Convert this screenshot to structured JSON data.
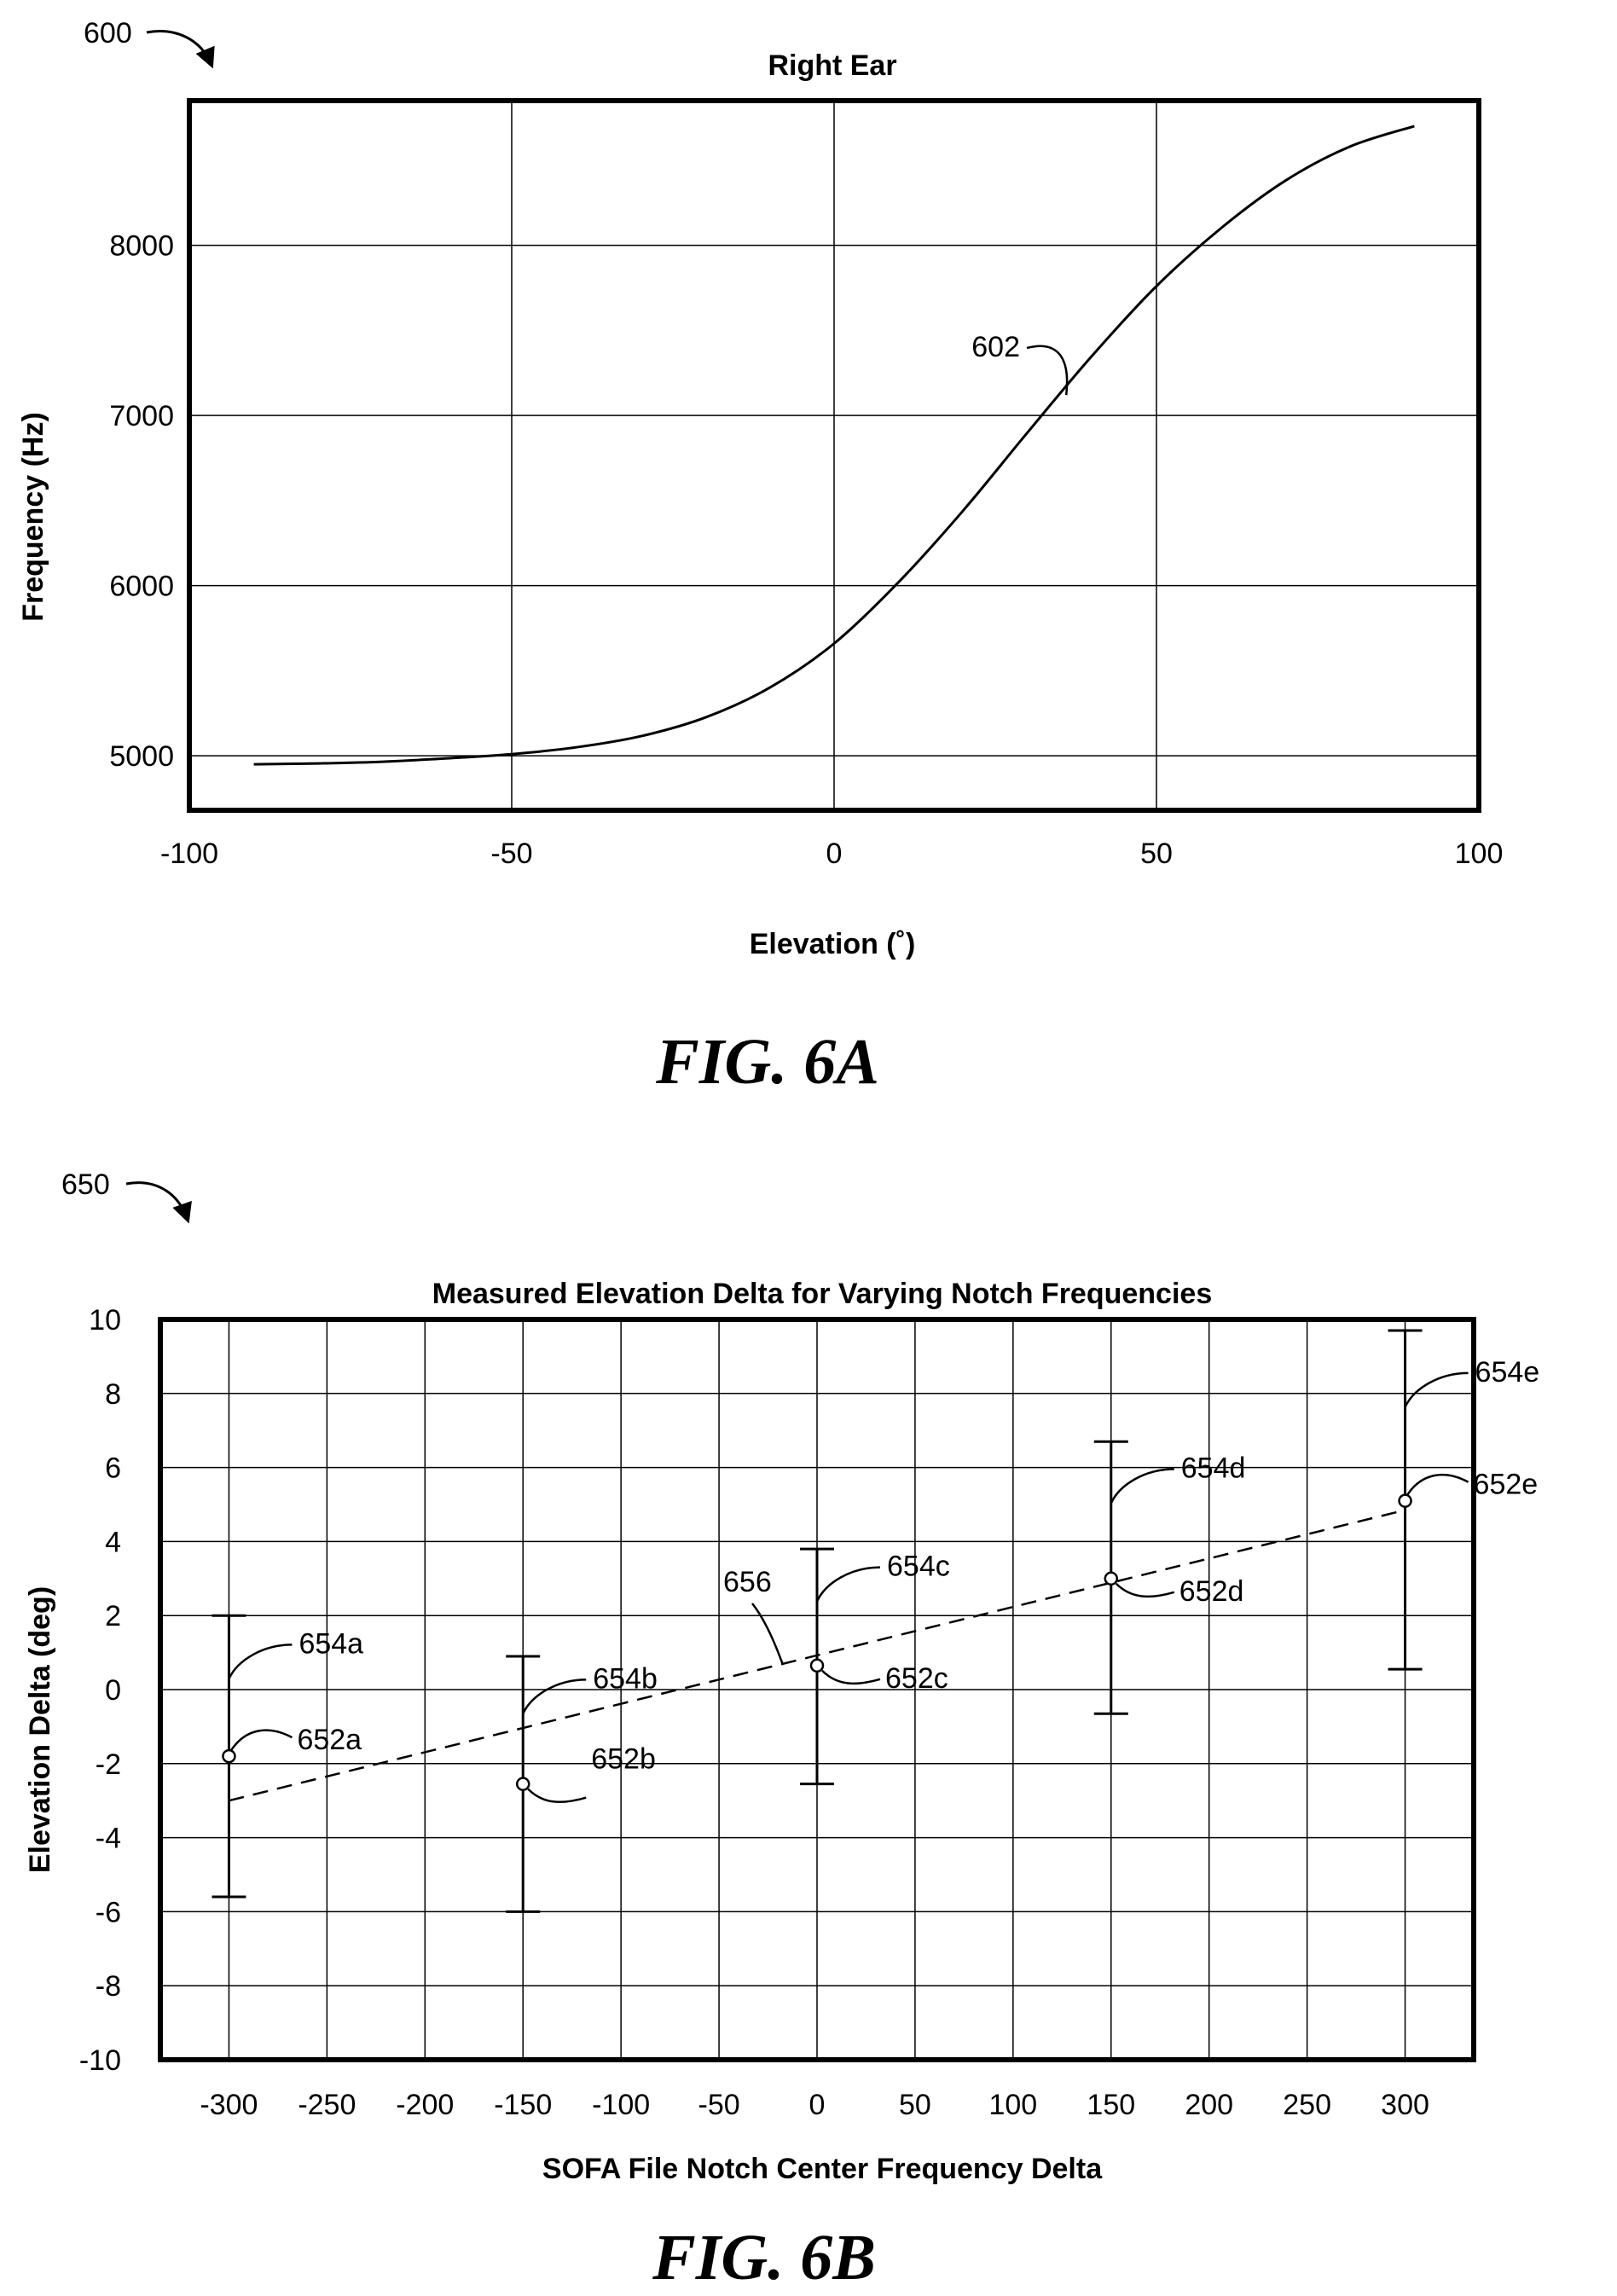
{
  "fig_a": {
    "ref_number": "600",
    "caption": "FIG. 6A",
    "curve_ref": "602"
  },
  "fig_b": {
    "ref_number": "650",
    "caption": "FIG. 6B",
    "trend_ref": "656"
  },
  "chart_data": [
    {
      "type": "line",
      "title": "Right Ear",
      "xlabel": "Elevation (˚)",
      "ylabel": "Frequency (Hz)",
      "xlim": [
        -100,
        100
      ],
      "ylim": [
        4680,
        8850
      ],
      "xticks": [
        -100,
        -50,
        0,
        50,
        100
      ],
      "yticks": [
        5000,
        6000,
        7000,
        8000
      ],
      "grid": true,
      "series": [
        {
          "x": [
            -90,
            -80,
            -70,
            -60,
            -50,
            -40,
            -30,
            -20,
            -10,
            0,
            10,
            20,
            30,
            40,
            50,
            60,
            70,
            80,
            90
          ],
          "y": [
            4950,
            4955,
            4965,
            4985,
            5010,
            5050,
            5115,
            5225,
            5400,
            5660,
            6020,
            6440,
            6900,
            7350,
            7760,
            8100,
            8380,
            8580,
            8700
          ]
        }
      ]
    },
    {
      "type": "scatter",
      "title": "Measured Elevation Delta for Varying Notch Frequencies",
      "xlabel": "SOFA File Notch Center Frequency Delta",
      "ylabel": "Elevation Delta (deg)",
      "xlim": [
        -335,
        335
      ],
      "ylim": [
        -10,
        10
      ],
      "xticks": [
        -300,
        -250,
        -200,
        -150,
        -100,
        -50,
        0,
        50,
        100,
        150,
        200,
        250,
        300
      ],
      "yticks": [
        -10,
        -8,
        -6,
        -4,
        -2,
        0,
        2,
        4,
        6,
        8,
        10
      ],
      "grid": true,
      "points": [
        {
          "x": -300,
          "y": -1.8,
          "low": -5.6,
          "high": 2.0,
          "label": "652a",
          "bar_label": "654a"
        },
        {
          "x": -150,
          "y": -2.55,
          "low": -6.0,
          "high": 0.9,
          "label": "652b",
          "bar_label": "654b"
        },
        {
          "x": 0,
          "y": 0.65,
          "low": -2.55,
          "high": 3.8,
          "label": "652c",
          "bar_label": "654c"
        },
        {
          "x": 150,
          "y": 3.0,
          "low": -0.65,
          "high": 6.7,
          "label": "652d",
          "bar_label": "654d"
        },
        {
          "x": 300,
          "y": 5.1,
          "low": 0.55,
          "high": 9.7,
          "label": "652e",
          "bar_label": "654e"
        }
      ],
      "trend_line": {
        "x": [
          -300,
          300
        ],
        "y": [
          -3.0,
          4.85
        ],
        "style": "dashed"
      }
    }
  ]
}
